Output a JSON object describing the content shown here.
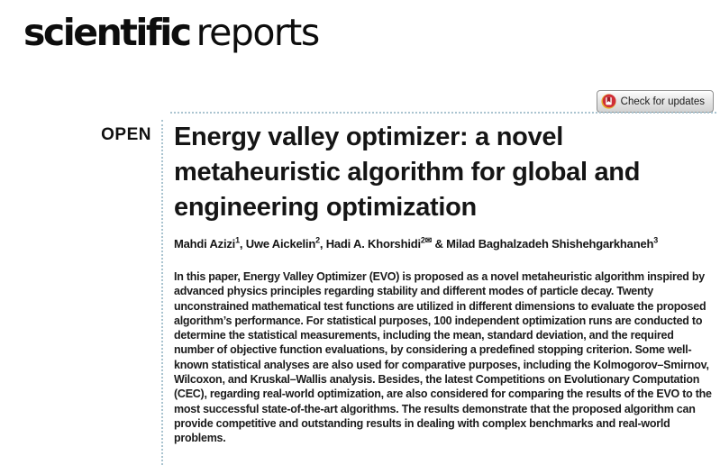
{
  "masthead": {
    "brand_bold": "scientific",
    "brand_light": "reports"
  },
  "update_button": {
    "label": "Check for updates",
    "icon": "crossmark-icon"
  },
  "open_access": {
    "label": "OPEN"
  },
  "article": {
    "title": "Energy valley optimizer: a novel metaheuristic algorithm for global and engineering optimization",
    "authors": [
      {
        "name": "Mahdi Azizi",
        "sup": "1",
        "corresponding": false
      },
      {
        "name": "Uwe Aickelin",
        "sup": "2",
        "corresponding": false
      },
      {
        "name": "Hadi A. Khorshidi",
        "sup": "2",
        "corresponding": true
      },
      {
        "name": "Milad Baghalzadeh Shishehgarkhaneh",
        "sup": "3",
        "corresponding": false
      }
    ],
    "author_separator": ", ",
    "author_last_separator": " & ",
    "corresponding_icon": "✉",
    "abstract": "In this paper, Energy Valley Optimizer (EVO) is proposed as a novel metaheuristic algorithm inspired by advanced physics principles regarding stability and different modes of particle decay. Twenty unconstrained mathematical test functions are utilized in different dimensions to evaluate the proposed algorithm’s performance. For statistical purposes, 100 independent optimization runs are conducted to determine the statistical measurements, including the mean, standard deviation, and the required number of objective function evaluations, by considering a predefined stopping criterion. Some well-known statistical analyses are also used for comparative purposes, including the Kolmogorov–Smirnov, Wilcoxon, and Kruskal–Wallis analysis. Besides, the latest Competitions on Evolutionary Computation (CEC), regarding real-world optimization, are also considered for comparing the results of the EVO to the most successful state-of-the-art algorithms. The results demonstrate that the proposed algorithm can provide competitive and outstanding results in dealing with complex benchmarks and real-world problems."
  },
  "colors": {
    "dotted_rule": "#aac4d0",
    "text": "#151515",
    "crossmark_yellow": "#e8b12c",
    "crossmark_red": "#cf2e38",
    "crossmark_bookmark": "#9e1b23"
  }
}
